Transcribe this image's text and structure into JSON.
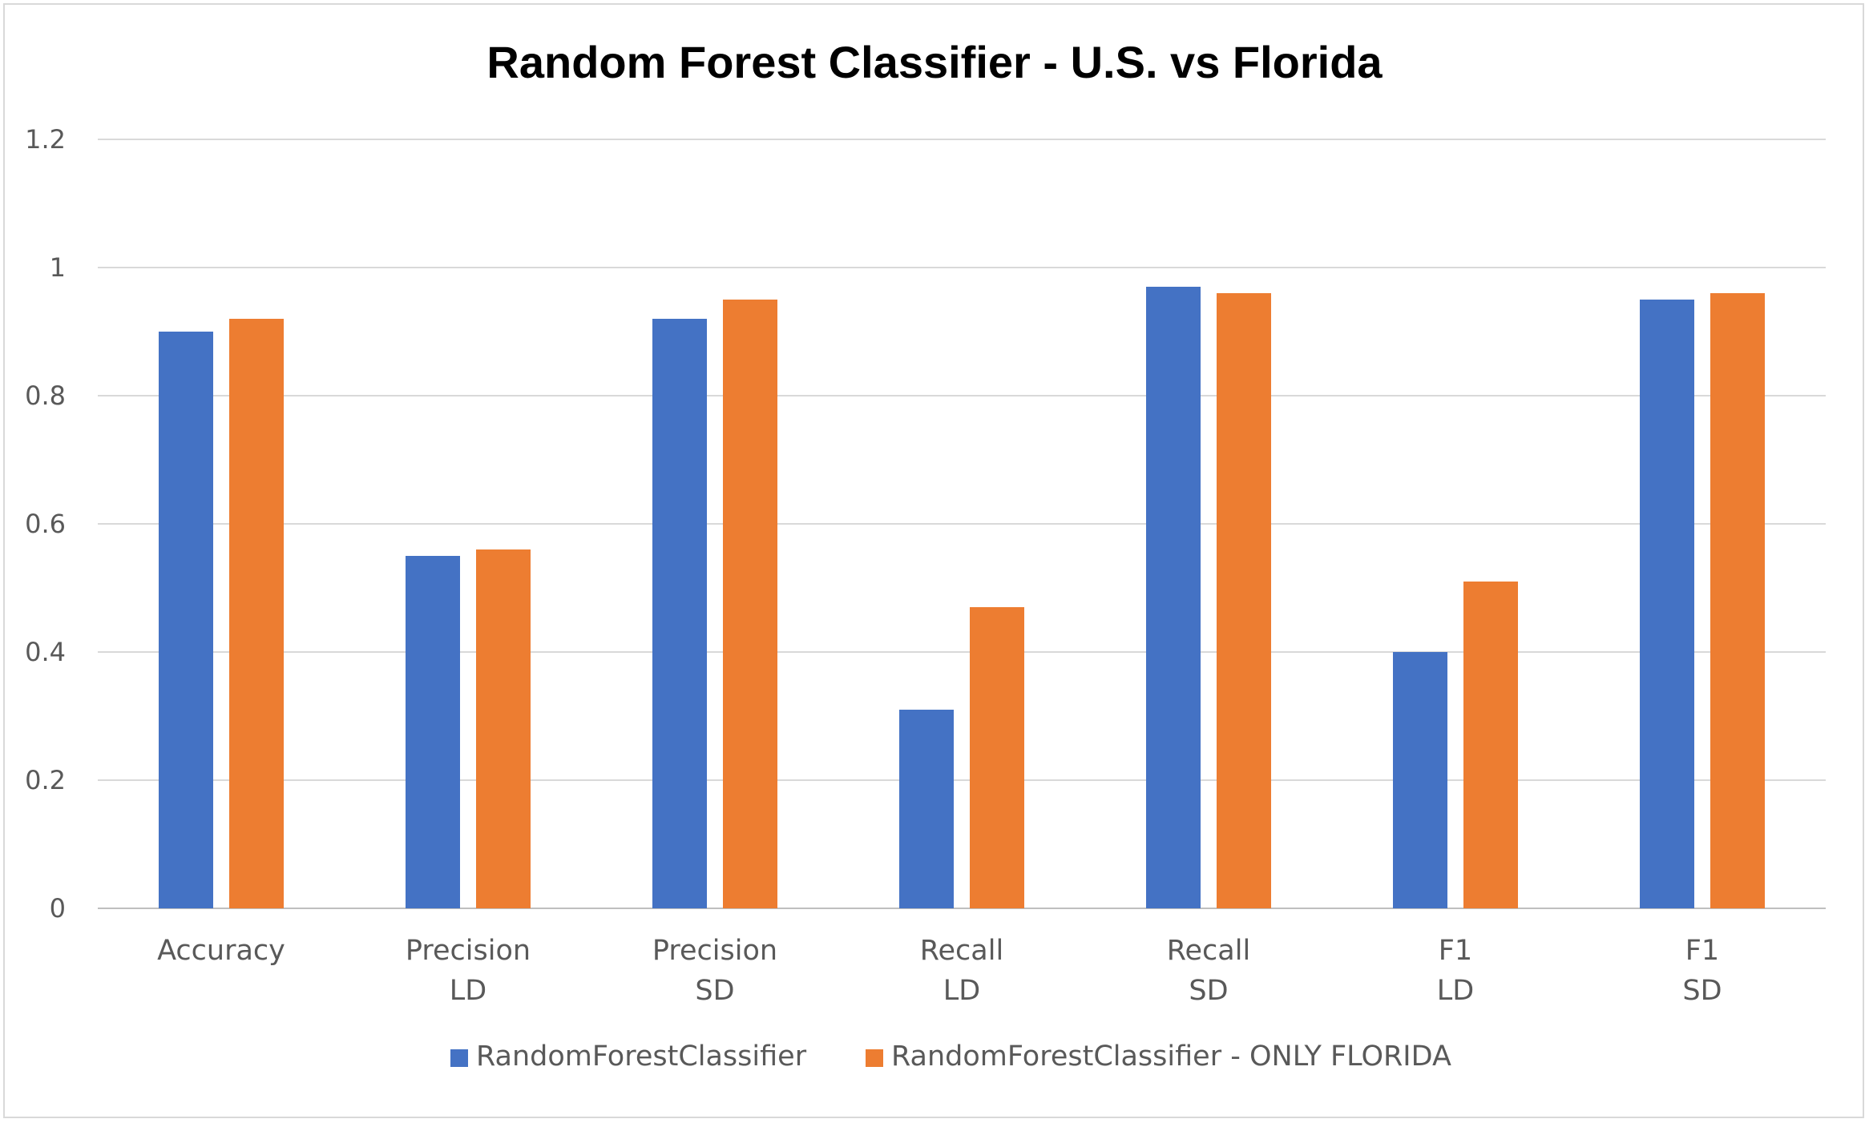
{
  "chart_data": {
    "type": "bar",
    "title": "Random Forest Classifier - U.S. vs Florida",
    "xlabel": "",
    "ylabel": "",
    "categories": [
      [
        "Accuracy"
      ],
      [
        "Precision",
        "LD"
      ],
      [
        "Precision",
        "SD"
      ],
      [
        "Recall",
        "LD"
      ],
      [
        "Recall",
        "SD"
      ],
      [
        "F1",
        "LD"
      ],
      [
        "F1",
        "SD"
      ]
    ],
    "series": [
      {
        "name": "RandomForestClassifier",
        "color": "#4472c4",
        "values": [
          0.9,
          0.55,
          0.92,
          0.31,
          0.97,
          0.4,
          0.95
        ]
      },
      {
        "name": "RandomForestClassifier - ONLY FLORIDA",
        "color": "#ed7d31",
        "values": [
          0.92,
          0.56,
          0.95,
          0.47,
          0.96,
          0.51,
          0.96
        ]
      }
    ],
    "ylim": [
      0,
      1.2
    ],
    "yticks": [
      "0",
      "0.2",
      "0.4",
      "0.6",
      "0.8",
      "1",
      "1.2"
    ],
    "ytick_values": [
      0,
      0.2,
      0.4,
      0.6,
      0.8,
      1,
      1.2
    ],
    "grid": true,
    "legend_position": "bottom"
  }
}
